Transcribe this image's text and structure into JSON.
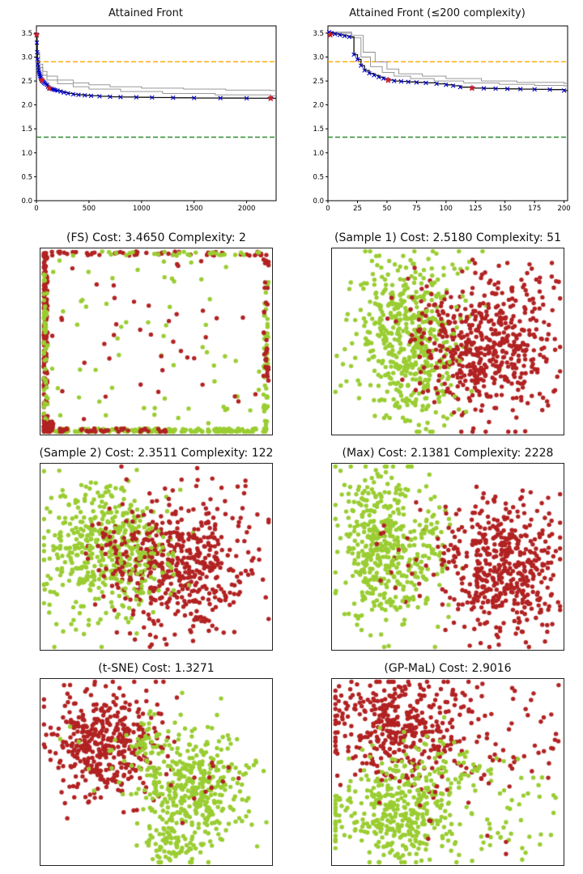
{
  "palette": {
    "red": "#b22222",
    "green": "#9acd32",
    "front": "#111111",
    "alt_front": "#8a8a8a",
    "marker_blue": "#0000cc",
    "special_red": "#cc2222",
    "hline_orange": "#ffa500",
    "hline_green": "#2e8b2e",
    "frame": "#000000"
  },
  "chart_data": [
    {
      "type": "line",
      "title": "Attained Front",
      "xlim": [
        0,
        2280
      ],
      "ylim": [
        0,
        3.65
      ],
      "xticks": [
        0,
        500,
        1000,
        1500,
        2000
      ],
      "yticks": [
        0.0,
        0.5,
        1.0,
        1.5,
        2.0,
        2.5,
        3.0,
        3.5
      ],
      "hlines": [
        {
          "y": 2.9016,
          "color": "hline_orange"
        },
        {
          "y": 1.3271,
          "color": "hline_green"
        }
      ],
      "front": {
        "x": [
          2,
          4,
          7,
          10,
          14,
          18,
          22,
          26,
          30,
          35,
          40,
          45,
          51,
          58,
          66,
          75,
          85,
          100,
          110,
          122,
          135,
          150,
          165,
          180,
          200,
          230,
          260,
          300,
          350,
          400,
          460,
          520,
          600,
          700,
          800,
          950,
          1100,
          1300,
          1500,
          1750,
          2000,
          2228
        ],
        "y": [
          3.465,
          3.3,
          3.1,
          2.95,
          2.85,
          2.78,
          2.72,
          2.68,
          2.64,
          2.6,
          2.57,
          2.54,
          2.518,
          2.5,
          2.48,
          2.46,
          2.44,
          2.42,
          2.38,
          2.3511,
          2.34,
          2.33,
          2.32,
          2.31,
          2.3,
          2.28,
          2.26,
          2.24,
          2.22,
          2.21,
          2.2,
          2.19,
          2.18,
          2.17,
          2.165,
          2.16,
          2.155,
          2.15,
          2.145,
          2.142,
          2.14,
          2.1381
        ]
      },
      "alt_fronts": [
        {
          "x": [
            2,
            10,
            30,
            60,
            100,
            200,
            350,
            500,
            700,
            1000,
            1400,
            1800,
            2228
          ],
          "y": [
            3.5,
            3.1,
            2.85,
            2.7,
            2.6,
            2.52,
            2.46,
            2.42,
            2.38,
            2.35,
            2.33,
            2.31,
            2.3
          ]
        },
        {
          "x": [
            2,
            10,
            30,
            60,
            100,
            200,
            350,
            500,
            800,
            1200,
            1700,
            2228
          ],
          "y": [
            3.5,
            3.05,
            2.78,
            2.62,
            2.52,
            2.44,
            2.38,
            2.33,
            2.28,
            2.24,
            2.21,
            2.19
          ]
        }
      ],
      "special": [
        {
          "x": 2,
          "y": 3.465
        },
        {
          "x": 51,
          "y": 2.518
        },
        {
          "x": 122,
          "y": 2.3511
        },
        {
          "x": 2228,
          "y": 2.1381
        }
      ]
    },
    {
      "type": "line",
      "title": "Attained Front (≤200 complexity)",
      "xlim": [
        0,
        203
      ],
      "ylim": [
        0,
        3.65
      ],
      "xticks": [
        0,
        25,
        50,
        75,
        100,
        125,
        150,
        175,
        200
      ],
      "yticks": [
        0.0,
        0.5,
        1.0,
        1.5,
        2.0,
        2.5,
        3.0,
        3.5
      ],
      "hlines": [
        {
          "y": 2.9016,
          "color": "hline_orange"
        },
        {
          "y": 1.3271,
          "color": "hline_green"
        }
      ],
      "front": {
        "x": [
          1,
          3,
          6,
          10,
          14,
          18,
          22,
          25,
          28,
          31,
          35,
          39,
          43,
          47,
          51,
          56,
          62,
          68,
          75,
          83,
          92,
          100,
          106,
          112,
          122,
          132,
          142,
          152,
          163,
          175,
          188,
          200
        ],
        "y": [
          3.52,
          3.5,
          3.48,
          3.46,
          3.44,
          3.42,
          3.05,
          2.95,
          2.82,
          2.72,
          2.66,
          2.62,
          2.58,
          2.55,
          2.518,
          2.5,
          2.49,
          2.48,
          2.47,
          2.46,
          2.44,
          2.42,
          2.4,
          2.37,
          2.3511,
          2.345,
          2.34,
          2.335,
          2.33,
          2.325,
          2.32,
          2.3
        ]
      },
      "alt_fronts": [
        {
          "x": [
            1,
            20,
            30,
            40,
            50,
            60,
            80,
            100,
            130,
            160,
            200
          ],
          "y": [
            3.52,
            3.45,
            3.1,
            2.9,
            2.75,
            2.65,
            2.6,
            2.55,
            2.5,
            2.47,
            2.45
          ]
        },
        {
          "x": [
            1,
            20,
            28,
            36,
            46,
            56,
            70,
            90,
            115,
            145,
            175,
            200
          ],
          "y": [
            3.5,
            3.4,
            3.0,
            2.8,
            2.68,
            2.6,
            2.55,
            2.5,
            2.46,
            2.43,
            2.41,
            2.4
          ]
        }
      ],
      "special": [
        {
          "x": 2,
          "y": 3.465
        },
        {
          "x": 51,
          "y": 2.518
        },
        {
          "x": 122,
          "y": 2.3511
        }
      ]
    },
    {
      "type": "scatter",
      "title": "(FS) Cost: 3.4650 Complexity: 2",
      "cost": 3.465,
      "complexity": 2,
      "seed": 7,
      "point_radius": 2.7,
      "clusters": [
        {
          "color": "red",
          "dist": "uniform",
          "cx": 0.018,
          "cy": 0.5,
          "sx": 0.013,
          "sy": 0.48,
          "n": 170
        },
        {
          "color": "green",
          "dist": "uniform",
          "cx": 0.018,
          "cy": 0.45,
          "sx": 0.013,
          "sy": 0.43,
          "n": 50
        },
        {
          "color": "green",
          "dist": "uniform",
          "cx": 0.5,
          "cy": 0.02,
          "sx": 0.48,
          "sy": 0.013,
          "n": 180
        },
        {
          "color": "red",
          "dist": "uniform",
          "cx": 0.3,
          "cy": 0.02,
          "sx": 0.28,
          "sy": 0.013,
          "n": 40
        },
        {
          "color": "red",
          "dist": "uniform",
          "cx": 0.03,
          "cy": 0.04,
          "sx": 0.025,
          "sy": 0.035,
          "n": 30
        },
        {
          "color": "red",
          "dist": "uniform",
          "cx": 0.5,
          "cy": 0.972,
          "sx": 0.47,
          "sy": 0.012,
          "n": 55
        },
        {
          "color": "green",
          "dist": "uniform",
          "cx": 0.55,
          "cy": 0.972,
          "sx": 0.42,
          "sy": 0.012,
          "n": 30
        },
        {
          "color": "green",
          "dist": "uniform",
          "cx": 0.975,
          "cy": 0.45,
          "sx": 0.012,
          "sy": 0.43,
          "n": 45
        },
        {
          "color": "red",
          "dist": "uniform",
          "cx": 0.975,
          "cy": 0.6,
          "sx": 0.012,
          "sy": 0.38,
          "n": 35
        },
        {
          "color": "green",
          "dist": "uniform",
          "cx": 0.5,
          "cy": 0.5,
          "sx": 0.45,
          "sy": 0.44,
          "n": 60
        },
        {
          "color": "red",
          "dist": "uniform",
          "cx": 0.5,
          "cy": 0.5,
          "sx": 0.45,
          "sy": 0.44,
          "n": 40
        }
      ]
    },
    {
      "type": "scatter",
      "title": "(Sample 1) Cost: 2.5180 Complexity: 51",
      "cost": 2.518,
      "complexity": 51,
      "seed": 8,
      "point_radius": 2.7,
      "clusters": [
        {
          "color": "green",
          "dist": "gauss",
          "cx": 0.33,
          "cy": 0.55,
          "sx": 0.12,
          "sy": 0.2,
          "n": 400
        },
        {
          "color": "green",
          "dist": "gauss",
          "cx": 0.38,
          "cy": 0.3,
          "sx": 0.1,
          "sy": 0.12,
          "n": 80
        },
        {
          "color": "red",
          "dist": "gauss",
          "cx": 0.68,
          "cy": 0.48,
          "sx": 0.14,
          "sy": 0.18,
          "n": 420
        },
        {
          "color": "red",
          "dist": "gauss",
          "cx": 0.5,
          "cy": 0.55,
          "sx": 0.1,
          "sy": 0.15,
          "n": 60
        },
        {
          "color": "red",
          "dist": "uniform",
          "cx": 0.7,
          "cy": 0.5,
          "sx": 0.28,
          "sy": 0.45,
          "n": 60
        },
        {
          "color": "green",
          "dist": "uniform",
          "cx": 0.35,
          "cy": 0.5,
          "sx": 0.25,
          "sy": 0.45,
          "n": 50
        }
      ]
    },
    {
      "type": "scatter",
      "title": "(Sample 2) Cost: 2.3511 Complexity: 122",
      "cost": 2.3511,
      "complexity": 122,
      "seed": 9,
      "point_radius": 2.7,
      "clusters": [
        {
          "color": "green",
          "dist": "gauss",
          "cx": 0.27,
          "cy": 0.55,
          "sx": 0.13,
          "sy": 0.18,
          "n": 420
        },
        {
          "color": "red",
          "dist": "gauss",
          "cx": 0.62,
          "cy": 0.45,
          "sx": 0.15,
          "sy": 0.17,
          "n": 430
        },
        {
          "color": "red",
          "dist": "gauss",
          "cx": 0.38,
          "cy": 0.55,
          "sx": 0.08,
          "sy": 0.12,
          "n": 40
        },
        {
          "color": "green",
          "dist": "gauss",
          "cx": 0.5,
          "cy": 0.45,
          "sx": 0.08,
          "sy": 0.12,
          "n": 40
        },
        {
          "color": "red",
          "dist": "uniform",
          "cx": 0.62,
          "cy": 0.5,
          "sx": 0.3,
          "sy": 0.42,
          "n": 50
        },
        {
          "color": "green",
          "dist": "uniform",
          "cx": 0.3,
          "cy": 0.5,
          "sx": 0.25,
          "sy": 0.4,
          "n": 40
        }
      ]
    },
    {
      "type": "scatter",
      "title": "(Max) Cost: 2.1381 Complexity: 2228",
      "cost": 2.1381,
      "complexity": 2228,
      "seed": 10,
      "point_radius": 2.7,
      "clusters": [
        {
          "color": "green",
          "dist": "gauss",
          "cx": 0.22,
          "cy": 0.55,
          "sx": 0.09,
          "sy": 0.2,
          "n": 400
        },
        {
          "color": "green",
          "dist": "gauss",
          "cx": 0.42,
          "cy": 0.5,
          "sx": 0.06,
          "sy": 0.15,
          "n": 50
        },
        {
          "color": "red",
          "dist": "gauss",
          "cx": 0.73,
          "cy": 0.45,
          "sx": 0.11,
          "sy": 0.18,
          "n": 440
        },
        {
          "color": "red",
          "dist": "gauss",
          "cx": 0.3,
          "cy": 0.5,
          "sx": 0.08,
          "sy": 0.15,
          "n": 18
        },
        {
          "color": "green",
          "dist": "uniform",
          "cx": 0.25,
          "cy": 0.55,
          "sx": 0.2,
          "sy": 0.4,
          "n": 40
        },
        {
          "color": "red",
          "dist": "uniform",
          "cx": 0.72,
          "cy": 0.45,
          "sx": 0.24,
          "sy": 0.4,
          "n": 50
        }
      ]
    },
    {
      "type": "scatter",
      "title": "(t-SNE) Cost: 1.3271",
      "cost": 1.3271,
      "seed": 11,
      "point_radius": 2.7,
      "clusters": [
        {
          "color": "red",
          "dist": "gauss",
          "cx": 0.27,
          "cy": 0.65,
          "sx": 0.11,
          "sy": 0.14,
          "n": 420
        },
        {
          "color": "green",
          "dist": "gauss",
          "cx": 0.66,
          "cy": 0.42,
          "sx": 0.12,
          "sy": 0.16,
          "n": 420
        },
        {
          "color": "green",
          "dist": "gauss",
          "cx": 0.55,
          "cy": 0.12,
          "sx": 0.06,
          "sy": 0.05,
          "n": 60
        },
        {
          "color": "green",
          "dist": "gauss",
          "cx": 0.46,
          "cy": 0.68,
          "sx": 0.05,
          "sy": 0.06,
          "n": 40
        },
        {
          "color": "red",
          "dist": "gauss",
          "cx": 0.66,
          "cy": 0.45,
          "sx": 0.1,
          "sy": 0.12,
          "n": 14
        },
        {
          "color": "green",
          "dist": "gauss",
          "cx": 0.3,
          "cy": 0.6,
          "sx": 0.08,
          "sy": 0.1,
          "n": 10
        }
      ]
    },
    {
      "type": "scatter",
      "title": "(GP-MaL) Cost: 2.9016",
      "cost": 2.9016,
      "seed": 12,
      "point_radius": 2.7,
      "clusters": [
        {
          "color": "red",
          "dist": "gauss",
          "cx": 0.28,
          "cy": 0.75,
          "sx": 0.15,
          "sy": 0.13,
          "n": 360
        },
        {
          "color": "red",
          "dist": "uniform",
          "cx": 0.6,
          "cy": 0.72,
          "sx": 0.38,
          "sy": 0.26,
          "n": 90
        },
        {
          "color": "green",
          "dist": "gauss",
          "cx": 0.28,
          "cy": 0.3,
          "sx": 0.13,
          "sy": 0.13,
          "n": 320
        },
        {
          "color": "green",
          "dist": "uniform",
          "cx": 0.55,
          "cy": 0.3,
          "sx": 0.42,
          "sy": 0.28,
          "n": 110
        },
        {
          "color": "green",
          "dist": "gauss",
          "cx": 0.45,
          "cy": 0.55,
          "sx": 0.12,
          "sy": 0.1,
          "n": 50
        },
        {
          "color": "red",
          "dist": "uniform",
          "cx": 0.5,
          "cy": 0.35,
          "sx": 0.3,
          "sy": 0.3,
          "n": 25
        }
      ]
    }
  ]
}
